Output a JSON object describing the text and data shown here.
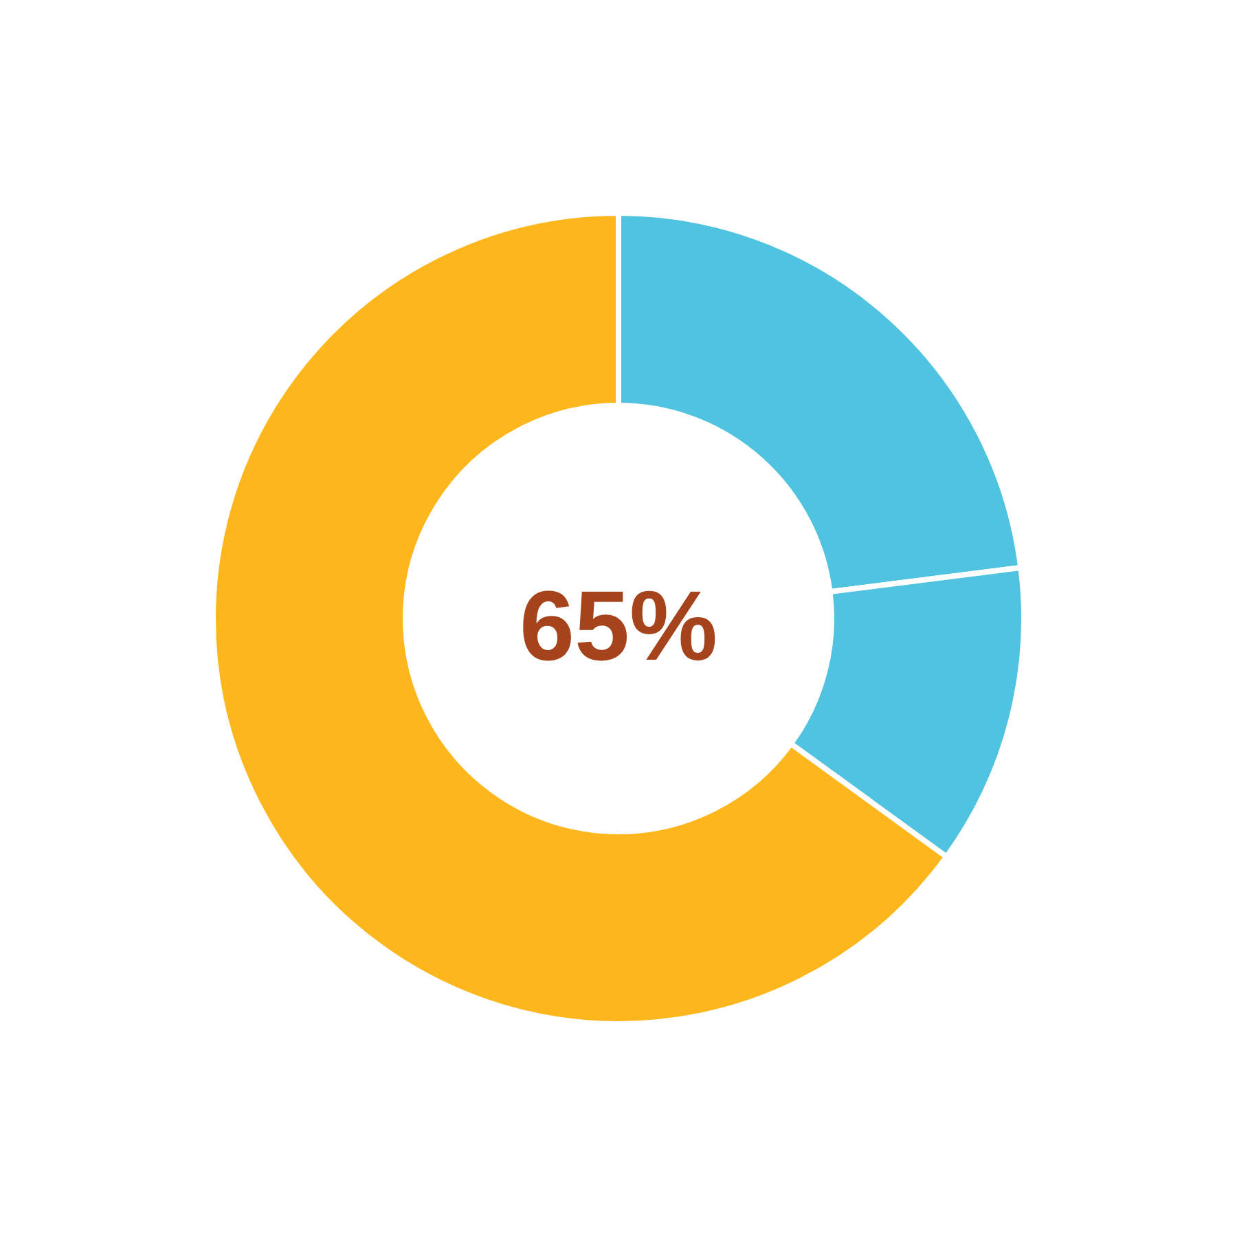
{
  "chart_data": {
    "type": "donut",
    "categories": [
      null,
      null,
      null
    ],
    "values": [
      23,
      12,
      65
    ],
    "colors": [
      "#4fc3df",
      "#4fc3df",
      "#fdb71d"
    ],
    "annotations": [
      "65%"
    ]
  }
}
